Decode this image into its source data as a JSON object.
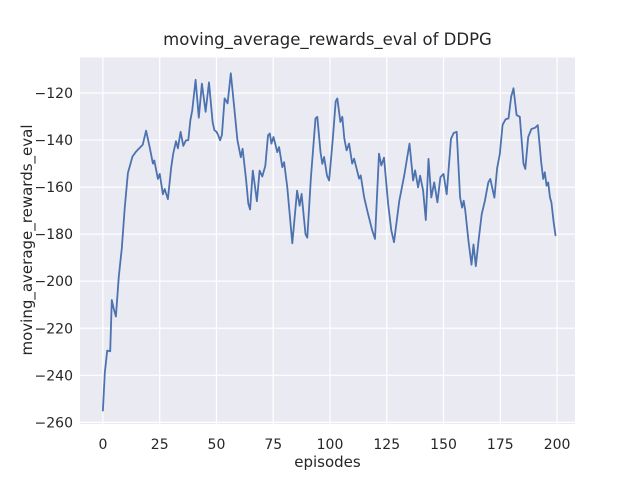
{
  "chart_data": {
    "type": "line",
    "title": "moving_average_rewards_eval of DDPG",
    "xlabel": "episodes",
    "ylabel": "moving_average_rewards_eval",
    "x_ticks": [
      0,
      25,
      50,
      75,
      100,
      125,
      150,
      175,
      200
    ],
    "y_ticks": [
      -120,
      -140,
      -160,
      -180,
      -200,
      -220,
      -240,
      -260
    ],
    "xlim": [
      -10.1,
      207.9
    ],
    "ylim": [
      -260.7,
      -104.9
    ],
    "grid": true,
    "legend": "none",
    "style": {
      "axes_background": "#eaeaf2",
      "grid_color": "#ffffff",
      "line_color": "#4c72b0",
      "text_color": "#262626",
      "line_width": 1.8
    },
    "series": [
      {
        "name": "moving_average_rewards_eval",
        "x": [
          0,
          0.8,
          1.9,
          3.2,
          3.9,
          4.7,
          5.7,
          7,
          8.3,
          9.6,
          11,
          13,
          14.5,
          16,
          17.5,
          19,
          20.7,
          22,
          22.6,
          24.2,
          25,
          26.4,
          27.2,
          28.6,
          30,
          30.9,
          32.2,
          33,
          34.2,
          35.4,
          36.5,
          37.6,
          38.5,
          39.3,
          40.8,
          42.2,
          43.6,
          45.2,
          46.7,
          48.3,
          49.1,
          50,
          50.8,
          51.6,
          52.4,
          53.6,
          54.9,
          56.3,
          57.8,
          59.2,
          60.7,
          61.5,
          63,
          64,
          64.8,
          66,
          66.8,
          67.8,
          69,
          70.2,
          71.5,
          72.7,
          73.5,
          74.2,
          75.1,
          76.8,
          77.6,
          79,
          79.8,
          81.2,
          83.4,
          85.5,
          86.6,
          87.5,
          89.2,
          90,
          91.6,
          93.6,
          94.4,
          95.8,
          96.6,
          97.4,
          98.7,
          99.6,
          101.3,
          102.5,
          103.2,
          104.6,
          105.4,
          106.3,
          107.3,
          108.4,
          109.8,
          110.6,
          112.8,
          113.5,
          115,
          116.4,
          118.6,
          119.8,
          121.6,
          122.6,
          123.8,
          125.6,
          127,
          128.2,
          130.5,
          132.7,
          135,
          136.6,
          137.5,
          138.8,
          139.7,
          141,
          142.2,
          143.4,
          144.6,
          145.9,
          147.3,
          148.6,
          150,
          151.4,
          153.3,
          154.5,
          155.8,
          157.3,
          158.2,
          158.9,
          159.6,
          161,
          162.3,
          163.2,
          164.2,
          165.4,
          166.8,
          168.2,
          169.7,
          170.6,
          171.6,
          172.4,
          173.6,
          174.8,
          176,
          177.3,
          178.6,
          179.8,
          180.8,
          182.2,
          183.6,
          185.2,
          186,
          187.3,
          188.7,
          190.3,
          191.5,
          193,
          193.9,
          194.6,
          195.4,
          196.1,
          196.9,
          197.5,
          198.5,
          199.3
        ],
        "y": [
          -255,
          -239,
          -229.5,
          -229.8,
          -208,
          -211.5,
          -215,
          -198,
          -186,
          -169,
          -154,
          -147,
          -145,
          -143.5,
          -142,
          -136,
          -143.5,
          -150,
          -148.7,
          -156.5,
          -154.4,
          -163,
          -160.8,
          -165.1,
          -152,
          -146,
          -140.5,
          -143.5,
          -136.5,
          -142.5,
          -140.2,
          -140,
          -131.5,
          -127.5,
          -114.4,
          -130.5,
          -116,
          -128,
          -115.5,
          -132.3,
          -135.8,
          -136.5,
          -138,
          -140.1,
          -137.9,
          -122.3,
          -124.4,
          -111.6,
          -126,
          -140,
          -147.3,
          -143.7,
          -156.5,
          -167,
          -169.5,
          -153,
          -158.6,
          -166,
          -153,
          -155.5,
          -151,
          -138,
          -137.2,
          -141.5,
          -138.7,
          -145.1,
          -143,
          -151.5,
          -149.4,
          -160.1,
          -183.9,
          -161.5,
          -167.9,
          -162.9,
          -180,
          -181.5,
          -156,
          -130.8,
          -130.1,
          -145.1,
          -150.1,
          -147.2,
          -155.1,
          -157.2,
          -139,
          -123.5,
          -122.3,
          -132.3,
          -130.1,
          -139.3,
          -144.4,
          -141.5,
          -150,
          -147.9,
          -156.4,
          -155,
          -164.2,
          -169.9,
          -178.4,
          -182,
          -145.8,
          -150.8,
          -147.5,
          -167,
          -178.4,
          -183.4,
          -165.8,
          -155.1,
          -141.5,
          -157.2,
          -152.9,
          -160.1,
          -155.1,
          -161.5,
          -174,
          -148,
          -164.4,
          -158,
          -166.5,
          -155.8,
          -154.4,
          -163,
          -139.4,
          -137,
          -136.5,
          -164.4,
          -168.7,
          -165.8,
          -170.1,
          -183,
          -193,
          -184.4,
          -193.6,
          -183,
          -171.5,
          -165.8,
          -158,
          -156.5,
          -161,
          -164.5,
          -152,
          -146,
          -133.5,
          -131.2,
          -130.8,
          -121.5,
          -118,
          -129.4,
          -130.1,
          -150.1,
          -152.3,
          -138.7,
          -135.3,
          -134.8,
          -133.7,
          -149.4,
          -156.5,
          -153.7,
          -159.4,
          -158,
          -164.4,
          -166.5,
          -175.1,
          -180.5
        ]
      }
    ]
  }
}
